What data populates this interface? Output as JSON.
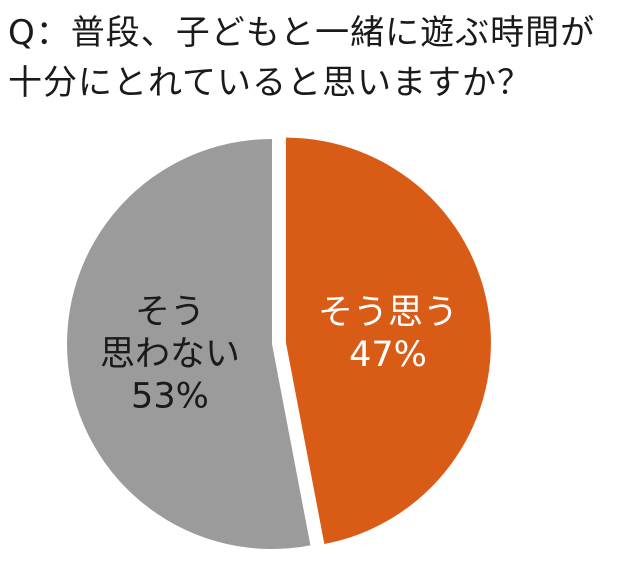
{
  "question": {
    "line1": "Q：普段、子どもと一緒に遊ぶ時間が",
    "line2": "十分にとれていると思いますか？"
  },
  "chart_data": {
    "type": "pie",
    "title": "Q：普段、子どもと一緒に遊ぶ時間が十分にとれていると思いますか？",
    "start": "12 o'clock",
    "direction": "clockwise",
    "exploded": "そう思う",
    "series": [
      {
        "name": "そう思う",
        "value": 47,
        "label_lines": [
          "そう思う",
          "47%"
        ],
        "color": "#d95c16",
        "text_color": "#ffffff"
      },
      {
        "name": "そう思わない",
        "value": 53,
        "label_lines": [
          "そう",
          "思わない",
          "53%"
        ],
        "color": "#9b9b9b",
        "text_color": "#1a1a1a"
      }
    ]
  }
}
